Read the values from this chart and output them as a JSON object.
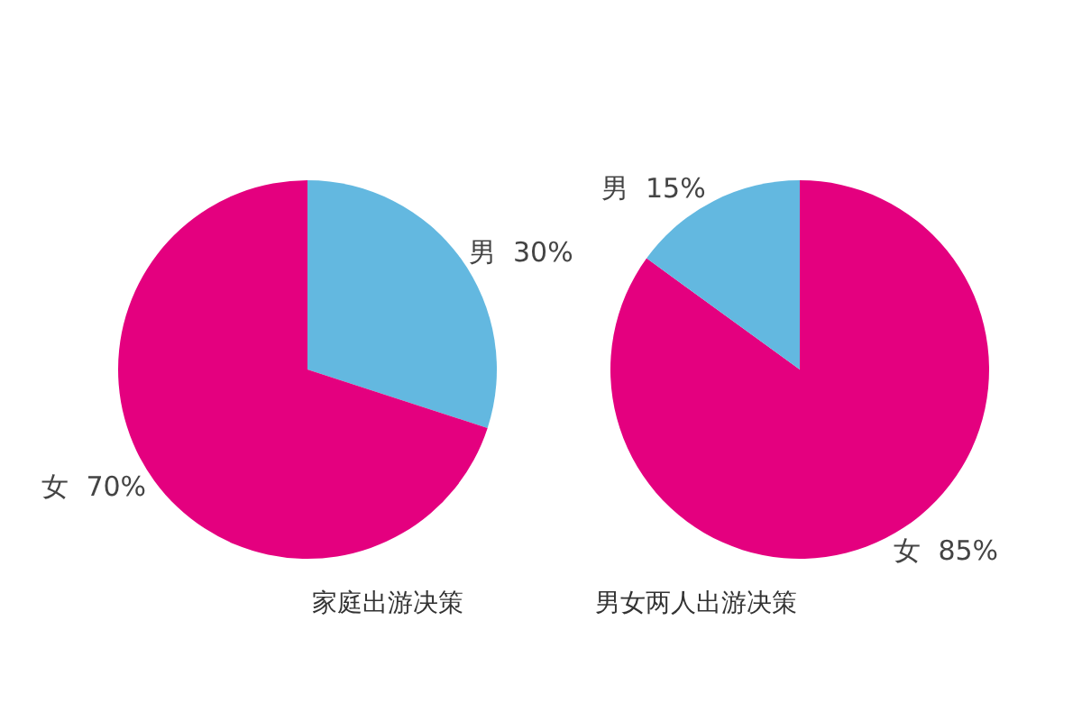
{
  "chart_data": [
    {
      "type": "pie",
      "title": "家庭出游决策",
      "categories": [
        "男",
        "女"
      ],
      "values": [
        30,
        70
      ],
      "colors": [
        "#63b8e0",
        "#e4007f"
      ],
      "value_labels": [
        "30%",
        "70%"
      ],
      "legend": false
    },
    {
      "type": "pie",
      "title": "男女两人出游决策",
      "categories": [
        "女",
        "男"
      ],
      "values": [
        85,
        15
      ],
      "colors": [
        "#e4007f",
        "#63b8e0"
      ],
      "value_labels": [
        "85%",
        "15%"
      ],
      "legend": false
    }
  ]
}
